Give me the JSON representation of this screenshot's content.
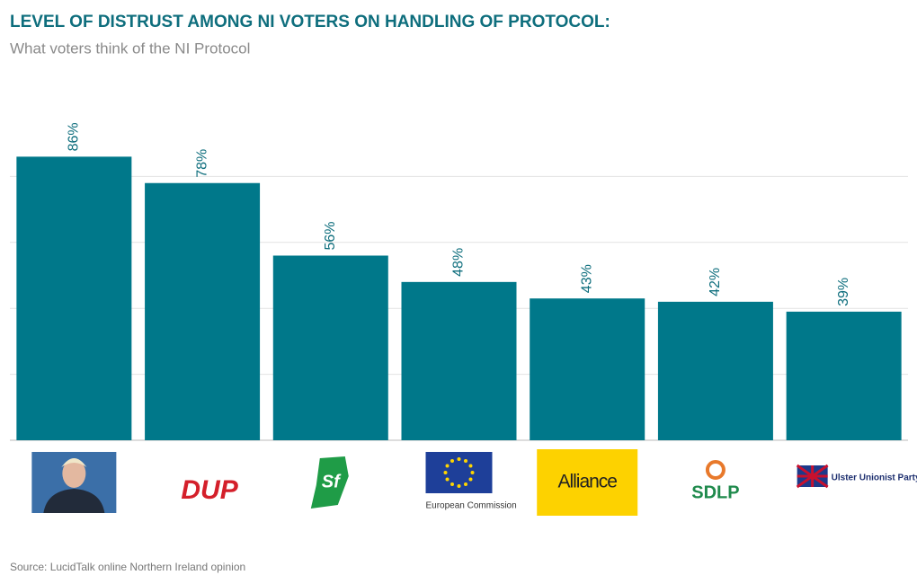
{
  "chart_data": {
    "type": "bar",
    "title": "LEVEL OF DISTRUST AMONG NI VOTERS ON HANDLING OF PROTOCOL:",
    "subtitle": "What voters think of the NI Protocol",
    "source": "Source: LucidTalk online Northern Ireland opinion",
    "categories": [
      null,
      "DUP",
      "Sf",
      "European Commission",
      "Alliance",
      "SDLP",
      "Ulster Unionist Party"
    ],
    "values": [
      86,
      78,
      56,
      48,
      43,
      42,
      39
    ],
    "value_labels": [
      "86%",
      "78%",
      "56%",
      "48%",
      "43%",
      "42%",
      "39%"
    ],
    "color": "#00788a",
    "ylim": [
      0,
      100
    ],
    "yticks": [
      0,
      20,
      40,
      60,
      80
    ],
    "grid": true
  }
}
